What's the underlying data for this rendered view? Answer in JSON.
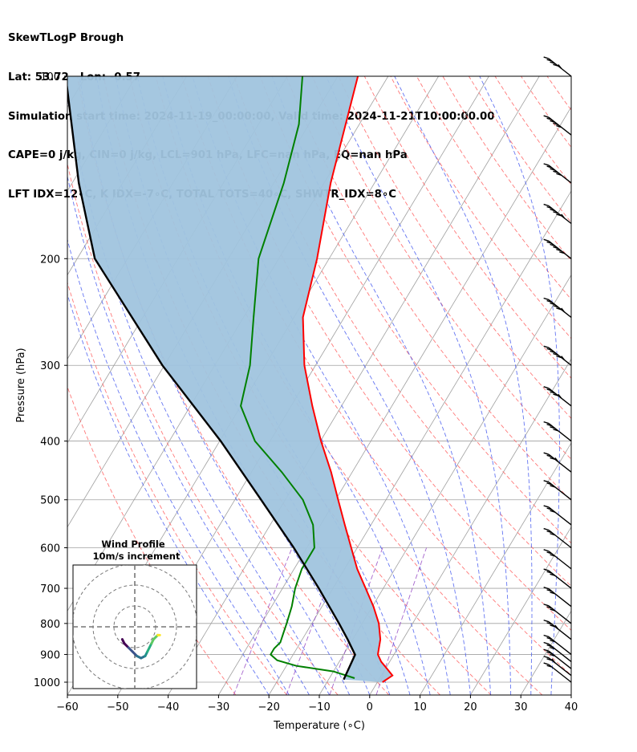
{
  "header": {
    "line1": "SkewTLogP Brough",
    "line2": "Lat: 53.72   Lon: -0.57",
    "line3": "Simulation start time: 2024-11-19_00:00:00, Valid time: 2024-11-21T10:00:00.00",
    "line4": "CAPE=0 j/kg, CIN=0 j/kg, LCL=901 hPa, LFC=nan hPa, EQ=nan hPa",
    "line5": "LFT IDX=12∘C, K IDX=-7∘C, TOTAL TOTS=40∘C, SHWTR_IDX=8∘C"
  },
  "chart_data": {
    "type": "skewt",
    "xlabel": "Temperature (∘C)",
    "ylabel": "Pressure (hPa)",
    "xlim": [
      -60,
      40
    ],
    "ylim": [
      1050,
      100
    ],
    "x_ticks": [
      -60,
      -50,
      -40,
      -30,
      -20,
      -10,
      0,
      10,
      20,
      30,
      40
    ],
    "x_tick_labels": [
      "−60",
      "−50",
      "−40",
      "−30",
      "−20",
      "−10",
      "0",
      "10",
      "20",
      "30",
      "40"
    ],
    "y_ticks": [
      100,
      200,
      300,
      400,
      500,
      600,
      700,
      800,
      900,
      1000
    ],
    "y_tick_labels": [
      "100",
      "200",
      "300",
      "400",
      "500",
      "600",
      "700",
      "800",
      "900",
      "1000"
    ],
    "colors": {
      "temperature": "#ff0000",
      "dewpoint": "#008000",
      "parcel": "#000000",
      "shade": "#a0c4de",
      "dry_adiabat": "#ff6060",
      "moist_adiabat": "#4a5ef0",
      "mixing_ratio": "#9040c0",
      "isotherm": "#a0a0a0"
    },
    "temperature": {
      "p": [
        1000,
        975,
        950,
        925,
        900,
        850,
        800,
        750,
        700,
        650,
        600,
        550,
        500,
        450,
        400,
        350,
        300,
        250,
        200,
        150,
        100
      ],
      "t": [
        1.0,
        2.2,
        0.3,
        -1.7,
        -3.2,
        -4.5,
        -6.7,
        -9.8,
        -13.5,
        -17.5,
        -21.2,
        -25.2,
        -29.5,
        -34.2,
        -39.9,
        -45.8,
        -52.2,
        -58.2,
        -62.4,
        -68.7,
        -76.0
      ]
    },
    "dewpoint": {
      "p": [
        985,
        960,
        940,
        920,
        900,
        880,
        860,
        830,
        800,
        750,
        700,
        650,
        600,
        550,
        500,
        450,
        400,
        350,
        300,
        250,
        200,
        150,
        120,
        100
      ],
      "t": [
        -5.0,
        -10.0,
        -18.0,
        -22.5,
        -24.5,
        -24.5,
        -24.0,
        -24.5,
        -25.0,
        -26.0,
        -27.5,
        -28.5,
        -28.5,
        -31.5,
        -36.5,
        -44.0,
        -53.0,
        -60.0,
        -63.0,
        -68.0,
        -74.0,
        -78.0,
        -82.0,
        -87.0
      ]
    },
    "parcel": {
      "p": [
        990,
        901,
        850,
        800,
        700,
        600,
        500,
        400,
        300,
        200,
        150,
        100
      ],
      "t": [
        -7.0,
        -7.7,
        -11.0,
        -14.6,
        -22.8,
        -32.6,
        -44.8,
        -59.8,
        -80.4,
        -106.5,
        -118.7,
        -134.0
      ]
    },
    "wind_barbs": {
      "p": [
        1000,
        975,
        950,
        925,
        900,
        850,
        800,
        750,
        700,
        650,
        600,
        550,
        500,
        450,
        400,
        350,
        300,
        250,
        200,
        175,
        150,
        125,
        100
      ],
      "speed_kt": [
        20,
        25,
        30,
        30,
        30,
        35,
        30,
        30,
        30,
        30,
        30,
        30,
        30,
        35,
        40,
        45,
        55,
        55,
        60,
        55,
        50,
        50,
        45
      ],
      "dir_deg": [
        300,
        300,
        300,
        300,
        300,
        300,
        300,
        300,
        300,
        300,
        300,
        300,
        300,
        300,
        300,
        300,
        300,
        300,
        300,
        300,
        300,
        300,
        300
      ]
    },
    "hodograph": {
      "title": "Wind Profile",
      "subtitle": "10m/s increment",
      "u": [
        -6,
        -5,
        -3,
        -1,
        1,
        3,
        5,
        6,
        7,
        8,
        9,
        11,
        12
      ],
      "v": [
        -6,
        -8,
        -10,
        -12,
        -14,
        -15,
        -14,
        -12,
        -10,
        -8,
        -6,
        -4,
        -4
      ]
    }
  }
}
